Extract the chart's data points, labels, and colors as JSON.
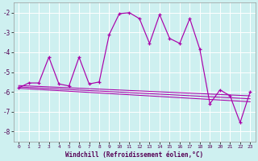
{
  "xlabel": "Windchill (Refroidissement éolien,°C)",
  "bg_color": "#cef0f0",
  "grid_color": "#b0dede",
  "line_color": "#aa00aa",
  "xlim": [
    -0.5,
    23.5
  ],
  "ylim": [
    -8.5,
    -1.5
  ],
  "yticks": [
    -8,
    -7,
    -6,
    -5,
    -4,
    -3,
    -2
  ],
  "xticks": [
    0,
    1,
    2,
    3,
    4,
    5,
    6,
    7,
    8,
    9,
    10,
    11,
    12,
    13,
    14,
    15,
    16,
    17,
    18,
    19,
    20,
    21,
    22,
    23
  ],
  "main_x": [
    0,
    1,
    2,
    3,
    4,
    5,
    6,
    7,
    8,
    9,
    10,
    11,
    12,
    13,
    14,
    15,
    16,
    17,
    18,
    19,
    20,
    21,
    22,
    23
  ],
  "main_y": [
    -5.8,
    -5.55,
    -5.55,
    -4.25,
    -5.6,
    -5.7,
    -4.25,
    -5.6,
    -5.5,
    -3.1,
    -2.05,
    -2.0,
    -2.3,
    -3.55,
    -2.1,
    -3.3,
    -3.55,
    -2.3,
    -3.85,
    -6.6,
    -5.9,
    -6.2,
    -7.55,
    -6.0
  ],
  "line1_x": [
    0,
    23
  ],
  "line1_y": [
    -5.75,
    -6.35
  ],
  "line2_x": [
    0,
    23
  ],
  "line2_y": [
    -5.82,
    -6.5
  ],
  "line3_x": [
    0,
    23
  ],
  "line3_y": [
    -5.68,
    -6.2
  ]
}
